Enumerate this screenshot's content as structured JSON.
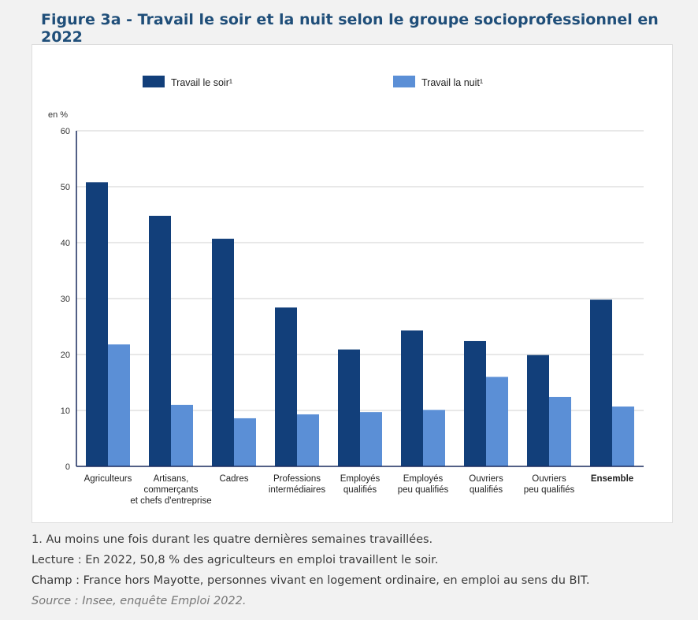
{
  "figure": {
    "title": "Figure 3a - Travail le soir et la nuit selon le groupe socioprofessionnel en 2022"
  },
  "chart_data": {
    "type": "bar",
    "unit_label": "en %",
    "ylim": [
      0,
      60
    ],
    "yticks": [
      0,
      10,
      20,
      30,
      40,
      50,
      60
    ],
    "grid": true,
    "legend_position": "top",
    "categories": [
      [
        "Agriculteurs"
      ],
      [
        "Artisans,",
        "commerçants",
        "et chefs d'entreprise"
      ],
      [
        "Cadres"
      ],
      [
        "Professions",
        "intermédiaires"
      ],
      [
        "Employés",
        "qualifiés"
      ],
      [
        "Employés",
        "peu qualifiés"
      ],
      [
        "Ouvriers",
        "qualifiés"
      ],
      [
        "Ouvriers",
        "peu qualifiés"
      ],
      [
        "Ensemble"
      ]
    ],
    "bold_category_index": 8,
    "series": [
      {
        "name": "Travail le soir¹",
        "color": "#123f7a",
        "values": [
          50.8,
          44.8,
          40.7,
          28.4,
          20.9,
          24.3,
          22.4,
          19.9,
          29.8
        ]
      },
      {
        "name": "Travail la nuit¹",
        "color": "#5b8fd6",
        "values": [
          21.8,
          11.0,
          8.6,
          9.3,
          9.7,
          10.1,
          16.0,
          12.4,
          10.7
        ]
      }
    ]
  },
  "notes": {
    "note1": "1. Au moins une fois durant les quatre dernières semaines travaillées.",
    "lecture": "Lecture : En 2022, 50,8 % des agriculteurs en emploi travaillent le soir.",
    "champ": "Champ : France hors Mayotte, personnes vivant en logement ordinaire, en emploi au sens du BIT.",
    "source": "Source : Insee, enquête Emploi 2022."
  }
}
